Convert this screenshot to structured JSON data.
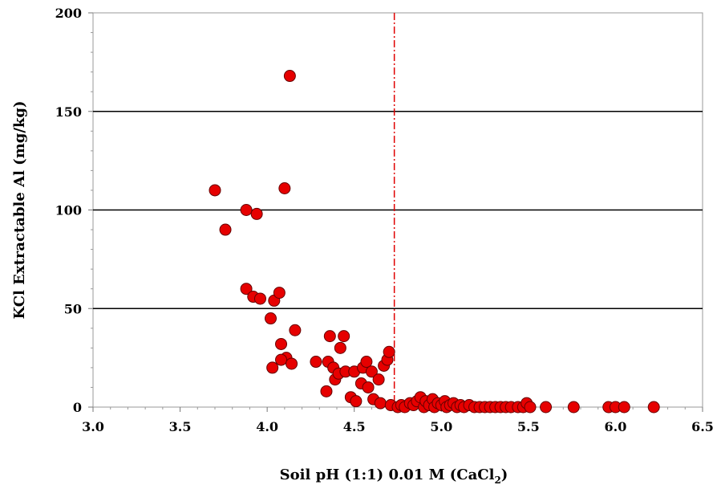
{
  "chart_data": {
    "type": "scatter",
    "title": "",
    "xlabel": "Soil pH (1:1) 0.01 M (CaCl",
    "xlabel_subscript": "2",
    "xlabel_suffix": ")",
    "ylabel": "KCl Extractable Al (mg/kg)",
    "xlim": [
      3.0,
      6.5
    ],
    "ylim": [
      0,
      200
    ],
    "x_ticks": [
      "3.0",
      "3.5",
      "4.0",
      "4.5",
      "5.0",
      "5.5",
      "6.0",
      "6.5"
    ],
    "y_ticks": [
      "0",
      "50",
      "100",
      "150",
      "200"
    ],
    "grid": "horizontal major",
    "legend": "none",
    "reference_line_x": 4.73,
    "colors": {
      "marker_fill": "#e60000",
      "marker_stroke": "#660000",
      "reference_line": "#e00000",
      "gridline": "#000000"
    },
    "series": [
      {
        "marker": "circle",
        "points": [
          [
            3.7,
            110
          ],
          [
            3.76,
            90
          ],
          [
            3.88,
            100
          ],
          [
            3.94,
            98
          ],
          [
            4.1,
            111
          ],
          [
            4.13,
            168
          ],
          [
            3.88,
            60
          ],
          [
            3.92,
            56
          ],
          [
            3.96,
            55
          ],
          [
            4.04,
            54
          ],
          [
            4.07,
            58
          ],
          [
            4.02,
            45
          ],
          [
            4.16,
            39
          ],
          [
            4.08,
            32
          ],
          [
            4.11,
            25
          ],
          [
            4.08,
            24
          ],
          [
            4.03,
            20
          ],
          [
            4.14,
            22
          ],
          [
            4.28,
            23
          ],
          [
            4.34,
            8
          ],
          [
            4.35,
            23
          ],
          [
            4.36,
            36
          ],
          [
            4.38,
            20
          ],
          [
            4.39,
            14
          ],
          [
            4.41,
            17
          ],
          [
            4.42,
            30
          ],
          [
            4.44,
            36
          ],
          [
            4.45,
            18
          ],
          [
            4.48,
            5
          ],
          [
            4.5,
            18
          ],
          [
            4.51,
            3
          ],
          [
            4.54,
            12
          ],
          [
            4.55,
            20
          ],
          [
            4.57,
            23
          ],
          [
            4.58,
            10
          ],
          [
            4.6,
            18
          ],
          [
            4.61,
            4
          ],
          [
            4.64,
            14
          ],
          [
            4.65,
            2
          ],
          [
            4.67,
            21
          ],
          [
            4.69,
            24
          ],
          [
            4.7,
            28
          ],
          [
            4.71,
            1
          ],
          [
            4.75,
            0
          ],
          [
            4.77,
            1
          ],
          [
            4.79,
            0
          ],
          [
            4.82,
            2
          ],
          [
            4.84,
            1
          ],
          [
            4.86,
            3
          ],
          [
            4.88,
            5
          ],
          [
            4.9,
            0
          ],
          [
            4.91,
            3
          ],
          [
            4.93,
            1
          ],
          [
            4.95,
            4
          ],
          [
            4.96,
            0
          ],
          [
            4.98,
            2
          ],
          [
            5.0,
            1
          ],
          [
            5.02,
            3
          ],
          [
            5.03,
            0
          ],
          [
            5.05,
            1
          ],
          [
            5.07,
            2
          ],
          [
            5.09,
            0
          ],
          [
            5.11,
            1
          ],
          [
            5.13,
            0
          ],
          [
            5.16,
            1
          ],
          [
            5.19,
            0
          ],
          [
            5.22,
            0
          ],
          [
            5.25,
            0
          ],
          [
            5.28,
            0
          ],
          [
            5.31,
            0
          ],
          [
            5.34,
            0
          ],
          [
            5.37,
            0
          ],
          [
            5.4,
            0
          ],
          [
            5.44,
            0
          ],
          [
            5.47,
            0
          ],
          [
            5.49,
            2
          ],
          [
            5.51,
            0
          ],
          [
            5.6,
            0
          ],
          [
            5.76,
            0
          ],
          [
            5.96,
            0
          ],
          [
            6.0,
            0
          ],
          [
            6.05,
            0
          ],
          [
            6.22,
            0
          ]
        ]
      }
    ]
  }
}
